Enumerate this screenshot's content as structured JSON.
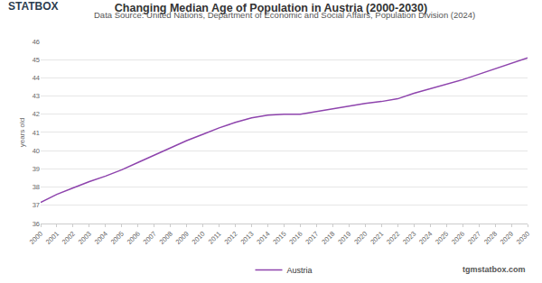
{
  "chart_data": {
    "type": "line",
    "title": "Changing Median Age of Population in Austria (2000-2030)",
    "subtitle": "Data Source: United Nations, Department of Economic and Social Affairs, Population Division (2024)",
    "y_label": "years old",
    "annotations": [
      "STATBOX",
      "tgmstatbox.com"
    ],
    "categories": [
      "2000",
      "2001",
      "2002",
      "2003",
      "2004",
      "2005",
      "2006",
      "2007",
      "2008",
      "2009",
      "2010",
      "2011",
      "2012",
      "2013",
      "2014",
      "2015",
      "2016",
      "2017",
      "2018",
      "2019",
      "2020",
      "2021",
      "2022",
      "2023",
      "2024",
      "2025",
      "2026",
      "2027",
      "2028",
      "2029",
      "2030"
    ],
    "series": [
      {
        "name": "Austria",
        "color": "#8e44ad",
        "values": [
          37.15,
          37.6,
          37.95,
          38.3,
          38.6,
          38.95,
          39.35,
          39.75,
          40.15,
          40.55,
          40.9,
          41.25,
          41.55,
          41.8,
          41.95,
          42.0,
          42.0,
          42.15,
          42.3,
          42.45,
          42.6,
          42.7,
          42.85,
          43.15,
          43.4,
          43.65,
          43.9,
          44.2,
          44.5,
          44.8,
          45.1
        ]
      }
    ],
    "ylim": [
      36,
      46
    ],
    "yticks": [
      36,
      37,
      38,
      39,
      40,
      41,
      42,
      43,
      44,
      45,
      46
    ],
    "grid": true,
    "legend": "bottom"
  }
}
